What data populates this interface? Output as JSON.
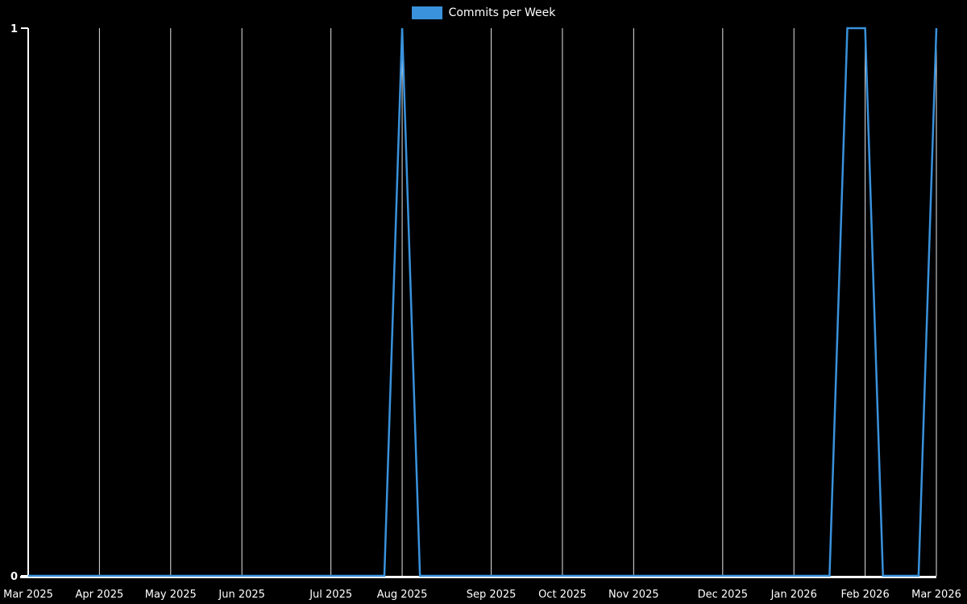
{
  "theme": {
    "background": "#000000",
    "text_color": "#ffffff",
    "grid_color": "#ffffff",
    "axis_color": "#ffffff",
    "line_color": "#3a92dc"
  },
  "legend": {
    "label": "Commits per Week"
  },
  "y_axis": {
    "top_label": "1",
    "bottom_label": "0"
  },
  "chart_data": {
    "type": "line",
    "title": "Commits per Week",
    "xlabel": "",
    "ylabel": "",
    "ylim": [
      0,
      1
    ],
    "y_tick_values": [
      0,
      1
    ],
    "grid": "vertical",
    "legend_position": "top-center",
    "x_unit": "week_index",
    "x_tick_labels": [
      "Mar 2025",
      "Apr 2025",
      "May 2025",
      "Jun 2025",
      "Jul 2025",
      "Aug 2025",
      "Sep 2025",
      "Oct 2025",
      "Nov 2025",
      "Dec 2025",
      "Jan 2026",
      "Feb 2026",
      "Mar 2026"
    ],
    "x_tick_week_indices": [
      0,
      4,
      8,
      12,
      17,
      21,
      26,
      30,
      34,
      39,
      43,
      47,
      51
    ],
    "series": [
      {
        "name": "Commits per Week",
        "color": "#3a92dc",
        "values": [
          0,
          0,
          0,
          0,
          0,
          0,
          0,
          0,
          0,
          0,
          0,
          0,
          0,
          0,
          0,
          0,
          0,
          0,
          0,
          0,
          0,
          1,
          0,
          0,
          0,
          0,
          0,
          0,
          0,
          0,
          0,
          0,
          0,
          0,
          0,
          0,
          0,
          0,
          0,
          0,
          0,
          0,
          0,
          0,
          0,
          0,
          1,
          1,
          0,
          0,
          0,
          1
        ]
      }
    ]
  }
}
